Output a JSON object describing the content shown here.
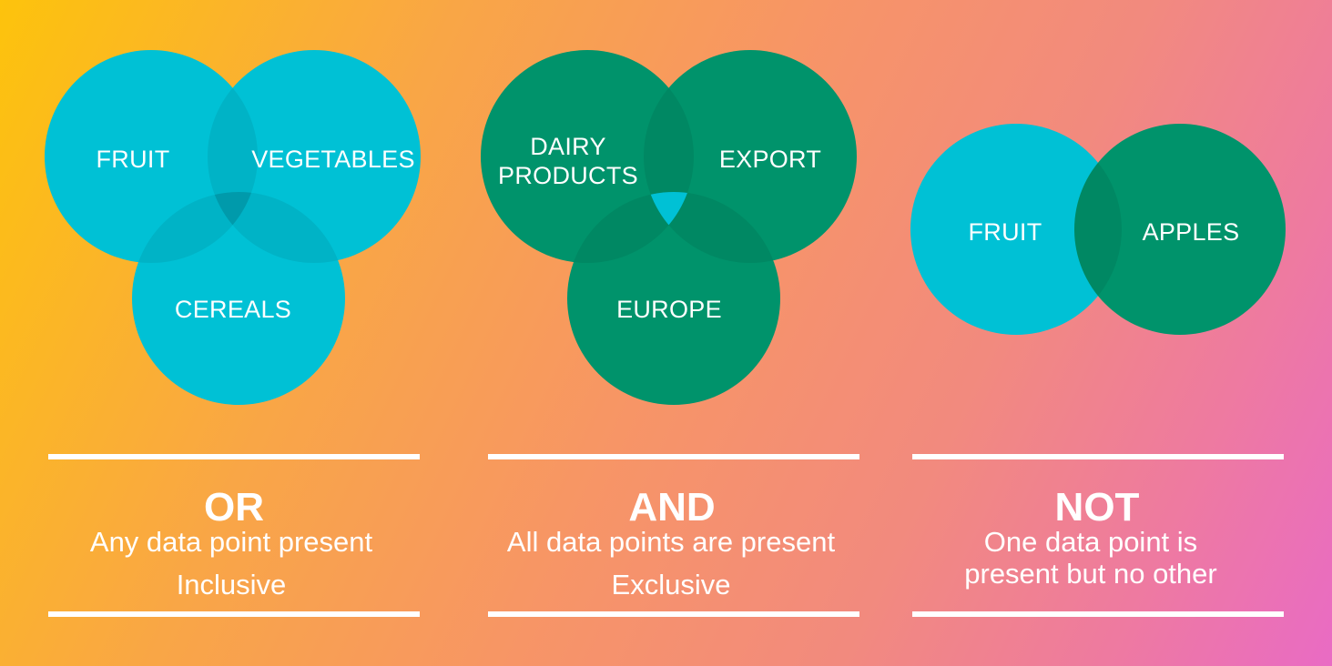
{
  "colors": {
    "cyan": "#00c1d5",
    "green": "#00936b",
    "text": "#ffffff"
  },
  "panels": [
    {
      "id": "or",
      "operator": "OR",
      "description_lines": [
        "Any data point present",
        "Inclusive"
      ],
      "circles": [
        {
          "label": "FRUIT",
          "color": "cyan"
        },
        {
          "label": "VEGETABLES",
          "color": "cyan"
        },
        {
          "label": "CEREALS",
          "color": "cyan"
        }
      ]
    },
    {
      "id": "and",
      "operator": "AND",
      "description_lines": [
        "All data points are present",
        "Exclusive"
      ],
      "circles": [
        {
          "label_lines": [
            "DAIRY",
            "PRODUCTS"
          ],
          "color": "green"
        },
        {
          "label": "EXPORT",
          "color": "green"
        },
        {
          "label": "EUROPE",
          "color": "green"
        }
      ],
      "highlight": "triple-intersection"
    },
    {
      "id": "not",
      "operator": "NOT",
      "description_lines": [
        "One data point is",
        "present but no other"
      ],
      "circles": [
        {
          "label": "FRUIT",
          "color": "cyan"
        },
        {
          "label": "APPLES",
          "color": "green"
        }
      ]
    }
  ]
}
